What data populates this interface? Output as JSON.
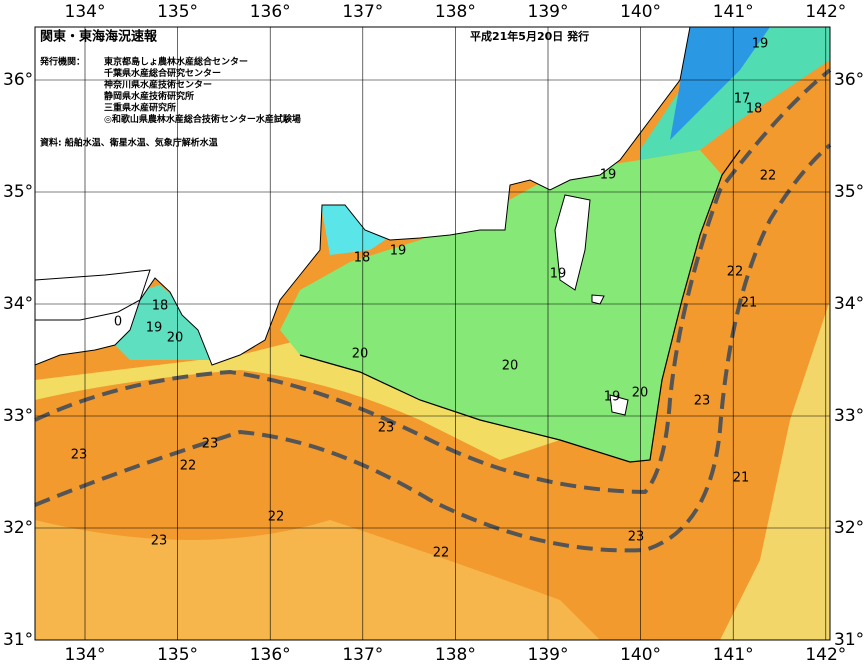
{
  "header": {
    "title": "関東・東海海況速報",
    "issued": "平成21年5月20日 発行"
  },
  "issuers": {
    "label": "発行機関：",
    "names": [
      "東京都島しょ農林水産総合センター",
      "千葉県水産総合研究センター",
      "神奈川県水産技術センター",
      "静岡県水産技術研究所",
      "三重県水産研究所",
      "◎和歌山県農林水産総合技術センター水産試験場"
    ]
  },
  "source": "資料: 船舶水温、衛星水温、気象庁解析水温",
  "axes": {
    "longitudes": [
      "134°",
      "135°",
      "136°",
      "137°",
      "138°",
      "139°",
      "140°",
      "141°",
      "142°"
    ],
    "latitudes": [
      "36°",
      "35°",
      "34°",
      "33°",
      "32°",
      "31°"
    ]
  },
  "contour_labels": [
    "19",
    "17",
    "18",
    "19",
    "22",
    "18",
    "19",
    "19",
    "22",
    "18",
    "21",
    "0",
    "19",
    "20",
    "20",
    "20",
    "19",
    "20",
    "23",
    "23",
    "23",
    "23",
    "22",
    "21",
    "22",
    "23",
    "23",
    "22"
  ]
}
